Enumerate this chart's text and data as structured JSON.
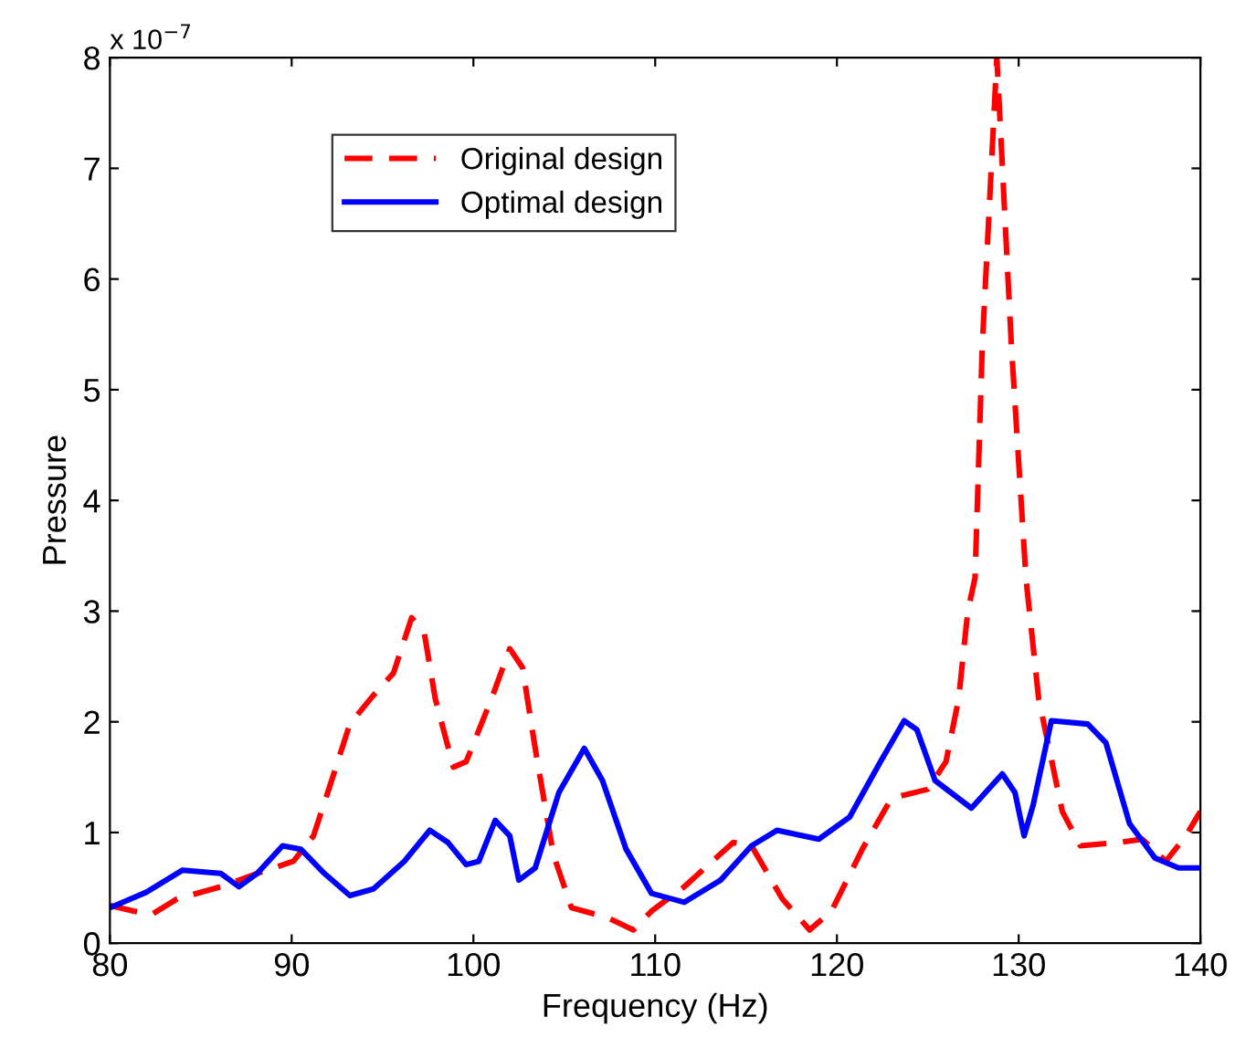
{
  "chart_data": {
    "type": "line",
    "xlabel": "Frequency (Hz)",
    "ylabel": "Pressure",
    "annotations": [
      "x 10$^{−7}$"
    ],
    "xlim": [
      80,
      140
    ],
    "xticks": [
      80,
      90,
      100,
      110,
      120,
      130,
      140
    ],
    "ylim": [
      0,
      8
    ],
    "yticks": [
      0,
      1,
      2,
      3,
      4,
      5,
      6,
      7,
      8
    ],
    "grid": false,
    "legend": "top left",
    "marker": "none",
    "series": [
      {
        "name": "Original design",
        "color": "#ff0000",
        "line_style": "dashed",
        "x": [
          80,
          81.3,
          82.3,
          83.7,
          86.1,
          88.1,
          90.1,
          91.2,
          92.2,
          93.2,
          94.5,
          95.6,
          96.6,
          97.3,
          97.9,
          98.9,
          99.6,
          101,
          102,
          102.7,
          103.4,
          104.4,
          105.4,
          107.4,
          108.8,
          109.8,
          111.6,
          114.3,
          115.3,
          117,
          118.5,
          119.7,
          121.4,
          123,
          125,
          126,
          126.7,
          127.2,
          127.6,
          128,
          128.8,
          129.6,
          130.4,
          131.1,
          132.4,
          133.4,
          135.5,
          136.8,
          138.1,
          139.2,
          140
        ],
        "values": [
          0.34,
          0.29,
          0.26,
          0.4,
          0.51,
          0.63,
          0.74,
          0.97,
          1.47,
          1.98,
          2.24,
          2.44,
          2.94,
          2.8,
          2.21,
          1.59,
          1.64,
          2.21,
          2.66,
          2.49,
          1.76,
          0.8,
          0.32,
          0.23,
          0.12,
          0.29,
          0.51,
          0.91,
          0.88,
          0.4,
          0.12,
          0.29,
          0.85,
          1.31,
          1.39,
          1.64,
          2.21,
          3.0,
          3.3,
          5.4,
          8.0,
          5.4,
          3.3,
          2.21,
          1.19,
          0.88,
          0.91,
          0.94,
          0.74,
          0.97,
          1.19
        ]
      },
      {
        "name": "Optimal design",
        "color": "#0000ff",
        "line_style": "solid",
        "x": [
          80,
          82,
          84,
          86.1,
          87.1,
          88.1,
          89.5,
          90.5,
          91.8,
          93.2,
          94.5,
          96.2,
          97.6,
          98.6,
          99.6,
          100.3,
          101.2,
          102,
          102.5,
          103.4,
          104.7,
          106.1,
          107.1,
          108.4,
          109.8,
          111.6,
          113.6,
          115.3,
          116.7,
          119,
          120.7,
          122.4,
          123.7,
          124.4,
          125.4,
          127.4,
          129.1,
          129.8,
          130.3,
          130.8,
          131.8,
          133.8,
          134.8,
          136.1,
          137.5,
          138.8,
          140
        ],
        "values": [
          0.32,
          0.46,
          0.66,
          0.63,
          0.51,
          0.63,
          0.88,
          0.85,
          0.63,
          0.43,
          0.49,
          0.74,
          1.02,
          0.91,
          0.71,
          0.74,
          1.11,
          0.97,
          0.57,
          0.68,
          1.36,
          1.76,
          1.47,
          0.85,
          0.45,
          0.37,
          0.57,
          0.88,
          1.02,
          0.94,
          1.14,
          1.64,
          2.01,
          1.93,
          1.47,
          1.22,
          1.53,
          1.36,
          0.97,
          1.25,
          2.01,
          1.98,
          1.81,
          1.08,
          0.77,
          0.68,
          0.68
        ]
      }
    ]
  }
}
